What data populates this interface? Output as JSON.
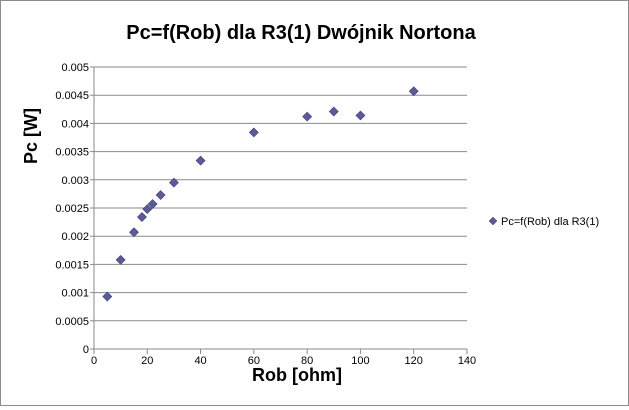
{
  "chart_data": {
    "type": "scatter",
    "title": "Pc=f(Rob) dla R3(1) Dwójnik Nortona",
    "xlabel": "Rob [ohm]",
    "ylabel": "Pc [W]",
    "xlim": [
      0,
      140
    ],
    "ylim": [
      0,
      0.005
    ],
    "x_ticks": [
      "0",
      "20",
      "40",
      "60",
      "80",
      "100",
      "120",
      "140"
    ],
    "y_ticks": [
      "0",
      "0.0005",
      "0.001",
      "0.0015",
      "0.002",
      "0.0025",
      "0.003",
      "0.0035",
      "0.004",
      "0.0045",
      "0.005"
    ],
    "grid": "horizontal",
    "legend_position": "right",
    "series": [
      {
        "name": "Pc=f(Rob) dla R3(1)",
        "color": "#5b5b9a",
        "marker": "diamond",
        "x": [
          5,
          10,
          15,
          18,
          20,
          22,
          25,
          30,
          40,
          60,
          80,
          90,
          100,
          120
        ],
        "y": [
          0.00093,
          0.00158,
          0.00207,
          0.00234,
          0.00248,
          0.00257,
          0.00273,
          0.00295,
          0.00334,
          0.00384,
          0.00412,
          0.00421,
          0.00414,
          0.00457
        ]
      }
    ]
  }
}
